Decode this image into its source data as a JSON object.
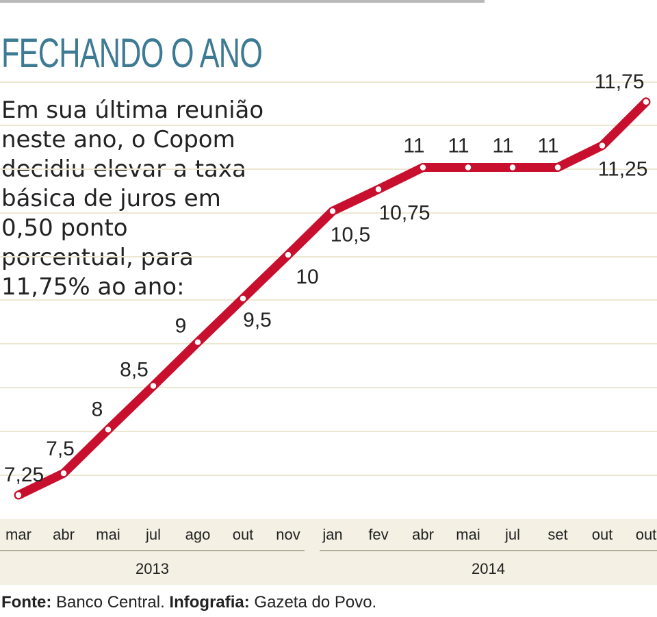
{
  "title": "FECHANDO O ANO",
  "description_lines": [
    "Em sua última reunião",
    "neste ano, o Copom",
    "decidiu elevar a taxa",
    "básica de juros em",
    "0,50 ponto",
    "porcentual, para",
    "11,75% ao ano:"
  ],
  "footer": {
    "source_label": "Fonte:",
    "source_value": "Banco Central.",
    "credit_label": "Infografia:",
    "credit_value": "Gazeta do Povo."
  },
  "colors": {
    "title": "#3d7a93",
    "line": "#c8102e",
    "grid": "#ede6d1",
    "axis_band": "#f4f0e4",
    "year_rule": "#b3ac98"
  },
  "chart_data": {
    "type": "line",
    "title": "",
    "xlabel": "",
    "ylabel": "",
    "categories": [
      "mar",
      "abr",
      "mai",
      "jul",
      "ago",
      "out",
      "nov",
      "jan",
      "fev",
      "abr",
      "mai",
      "jul",
      "set",
      "out",
      "out"
    ],
    "year_groups": [
      {
        "label": "2013",
        "start": 0,
        "end": 6
      },
      {
        "label": "2014",
        "start": 7,
        "end": 14
      }
    ],
    "series": [
      {
        "values": [
          7.25,
          7.5,
          8,
          8.5,
          9,
          9.5,
          10,
          10.5,
          10.75,
          11,
          11,
          11,
          11,
          11.25,
          11.75
        ],
        "labels": [
          "7,25",
          "7,5",
          "8",
          "8,5",
          "9",
          "9,5",
          "10",
          "10,5",
          "10,75",
          "11",
          "11",
          "11",
          "11",
          "11,25",
          "11,75"
        ]
      }
    ],
    "grid": true,
    "legend": "none"
  }
}
